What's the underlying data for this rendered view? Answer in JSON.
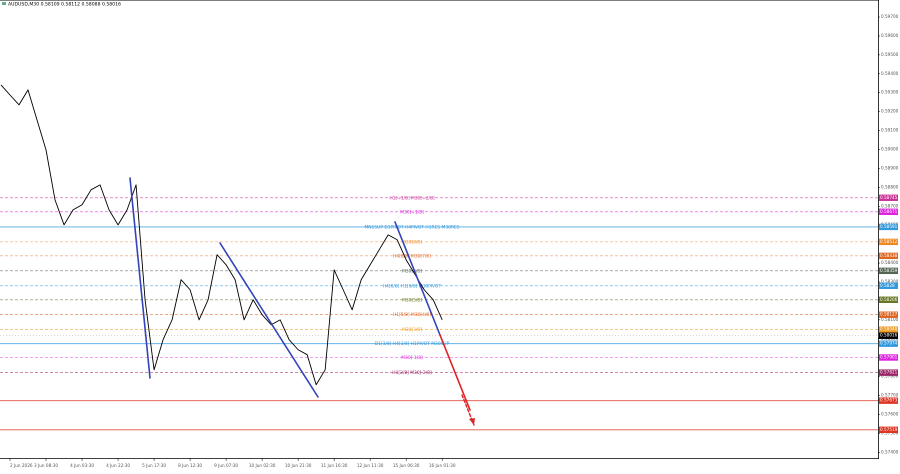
{
  "chart_data": {
    "type": "line",
    "title": "AUDUSD,M30  0.58109 0.58112 0.58088 0.58016",
    "price_color": "#000000",
    "values": [
      0.59341,
      0.59288,
      0.59236,
      0.59315,
      0.59156,
      0.58998,
      0.58734,
      0.58602,
      0.58681,
      0.58708,
      0.58787,
      0.58813,
      0.58681,
      0.58602,
      0.58681,
      0.58813,
      0.58206,
      0.57836,
      0.57995,
      0.581,
      0.58312,
      0.58259,
      0.581,
      0.58206,
      0.58444,
      0.58391,
      0.58312,
      0.581,
      0.58206,
      0.58127,
      0.58074,
      0.581,
      0.57995,
      0.57942,
      0.57916,
      0.57757,
      0.57836,
      0.58364,
      0.58259,
      0.58153,
      0.58312,
      0.58391,
      0.5847,
      0.58549,
      0.58523,
      0.58417,
      0.58338,
      0.58259,
      0.58206,
      0.581
    ],
    "current_price": 0.58016,
    "xlim": [
      0,
      97.4
    ],
    "xticks": [
      {
        "value": 1,
        "label": "2 Jun 2026"
      },
      {
        "value": 5,
        "label": "3 Jun 08:30"
      },
      {
        "value": 9,
        "label": "4 Jun 03:30"
      },
      {
        "value": 13,
        "label": "4 Jun 22:30"
      },
      {
        "value": 17,
        "label": "5 Jun 17:30"
      },
      {
        "value": 21,
        "label": "8 Jun 12:30"
      },
      {
        "value": 25,
        "label": "9 Jun 07:30"
      },
      {
        "value": 29,
        "label": "10 Jun 02:30"
      },
      {
        "value": 33,
        "label": "10 Jun 21:30"
      },
      {
        "value": 37,
        "label": "11 Jun 16:30"
      },
      {
        "value": 41,
        "label": "12 Jun 11:30"
      },
      {
        "value": 45,
        "label": "15 Jun 06:30"
      },
      {
        "value": 49,
        "label": "16 Jun 01:30"
      }
    ],
    "ylim": [
      0.5737,
      0.5979
    ],
    "yticks": [
      {
        "value": 0.574,
        "label": "0.57400"
      },
      {
        "value": 0.575,
        "label": "0.57500"
      },
      {
        "value": 0.576,
        "label": "0.57600"
      },
      {
        "value": 0.577,
        "label": "0.57700"
      },
      {
        "value": 0.578,
        "label": "0.57800"
      },
      {
        "value": 0.579,
        "label": "0.57900"
      },
      {
        "value": 0.58,
        "label": "0.58000"
      },
      {
        "value": 0.581,
        "label": "0.58100"
      },
      {
        "value": 0.582,
        "label": "0.58200"
      },
      {
        "value": 0.583,
        "label": "0.58300"
      },
      {
        "value": 0.584,
        "label": "0.58400"
      },
      {
        "value": 0.585,
        "label": "0.58500"
      },
      {
        "value": 0.586,
        "label": "0.58600"
      },
      {
        "value": 0.587,
        "label": "0.58700"
      },
      {
        "value": 0.588,
        "label": "0.58800"
      },
      {
        "value": 0.589,
        "label": "0.58900"
      },
      {
        "value": 0.59,
        "label": "0.59000"
      },
      {
        "value": 0.591,
        "label": "0.59100"
      },
      {
        "value": 0.592,
        "label": "0.59200"
      },
      {
        "value": 0.593,
        "label": "0.59300"
      },
      {
        "value": 0.594,
        "label": "0.59400"
      },
      {
        "value": 0.595,
        "label": "0.59500"
      },
      {
        "value": 0.596,
        "label": "0.59600"
      },
      {
        "value": 0.597,
        "label": "0.59700"
      }
    ],
    "levels": [
      {
        "value": 0.58745,
        "label": "H1[+1/8] M30[+2/8]",
        "color": "#cc3399",
        "dashed": true
      },
      {
        "value": 0.58671,
        "label": "M30[+1/8]",
        "color": "#dd22dd",
        "dashed": true
      },
      {
        "value": 0.58591,
        "label": "MN1SUP D1PIVOT H4PIVOT H1RES M30RES",
        "color": "#3399dd",
        "dashed": false
      },
      {
        "value": 0.58512,
        "label": "M30[8/8]",
        "color": "#ee8822",
        "dashed": true
      },
      {
        "value": 0.58438,
        "label": "H4[8/8] M30[7/8]",
        "color": "#dd6622",
        "dashed": true
      },
      {
        "value": 0.58359,
        "label": "M30[6/8]",
        "color": "#556655",
        "dashed": true
      },
      {
        "value": 0.5828,
        "label": "H4[6/8] H1[6/8] M30PIVOT",
        "color": "#3399dd",
        "dashed": true
      },
      {
        "value": 0.58206,
        "label": "M30[5/8]",
        "color": "#667722",
        "dashed": true
      },
      {
        "value": 0.58127,
        "label": "H1[5/8] M30[4/8]",
        "color": "#dd6622",
        "dashed": true
      },
      {
        "value": 0.58048,
        "label": "M30[3/8]",
        "color": "#ee9922",
        "dashed": true
      },
      {
        "value": 0.57974,
        "label": "D1[3/8] H4[3/8] H1PIVOT M30SUP",
        "color": "#3399dd",
        "dashed": false
      },
      {
        "value": 0.57901,
        "label": "M30[-1/8]",
        "color": "#dd22dd",
        "dashed": true
      },
      {
        "value": 0.57821,
        "label": "H1[2/8] M30[-2/8]",
        "color": "#992266",
        "dashed": true
      },
      {
        "value": 0.57673,
        "label": null,
        "color": "#dd3322",
        "dashed": false
      },
      {
        "value": 0.57519,
        "label": null,
        "color": "#dd3322",
        "dashed": false
      }
    ]
  }
}
